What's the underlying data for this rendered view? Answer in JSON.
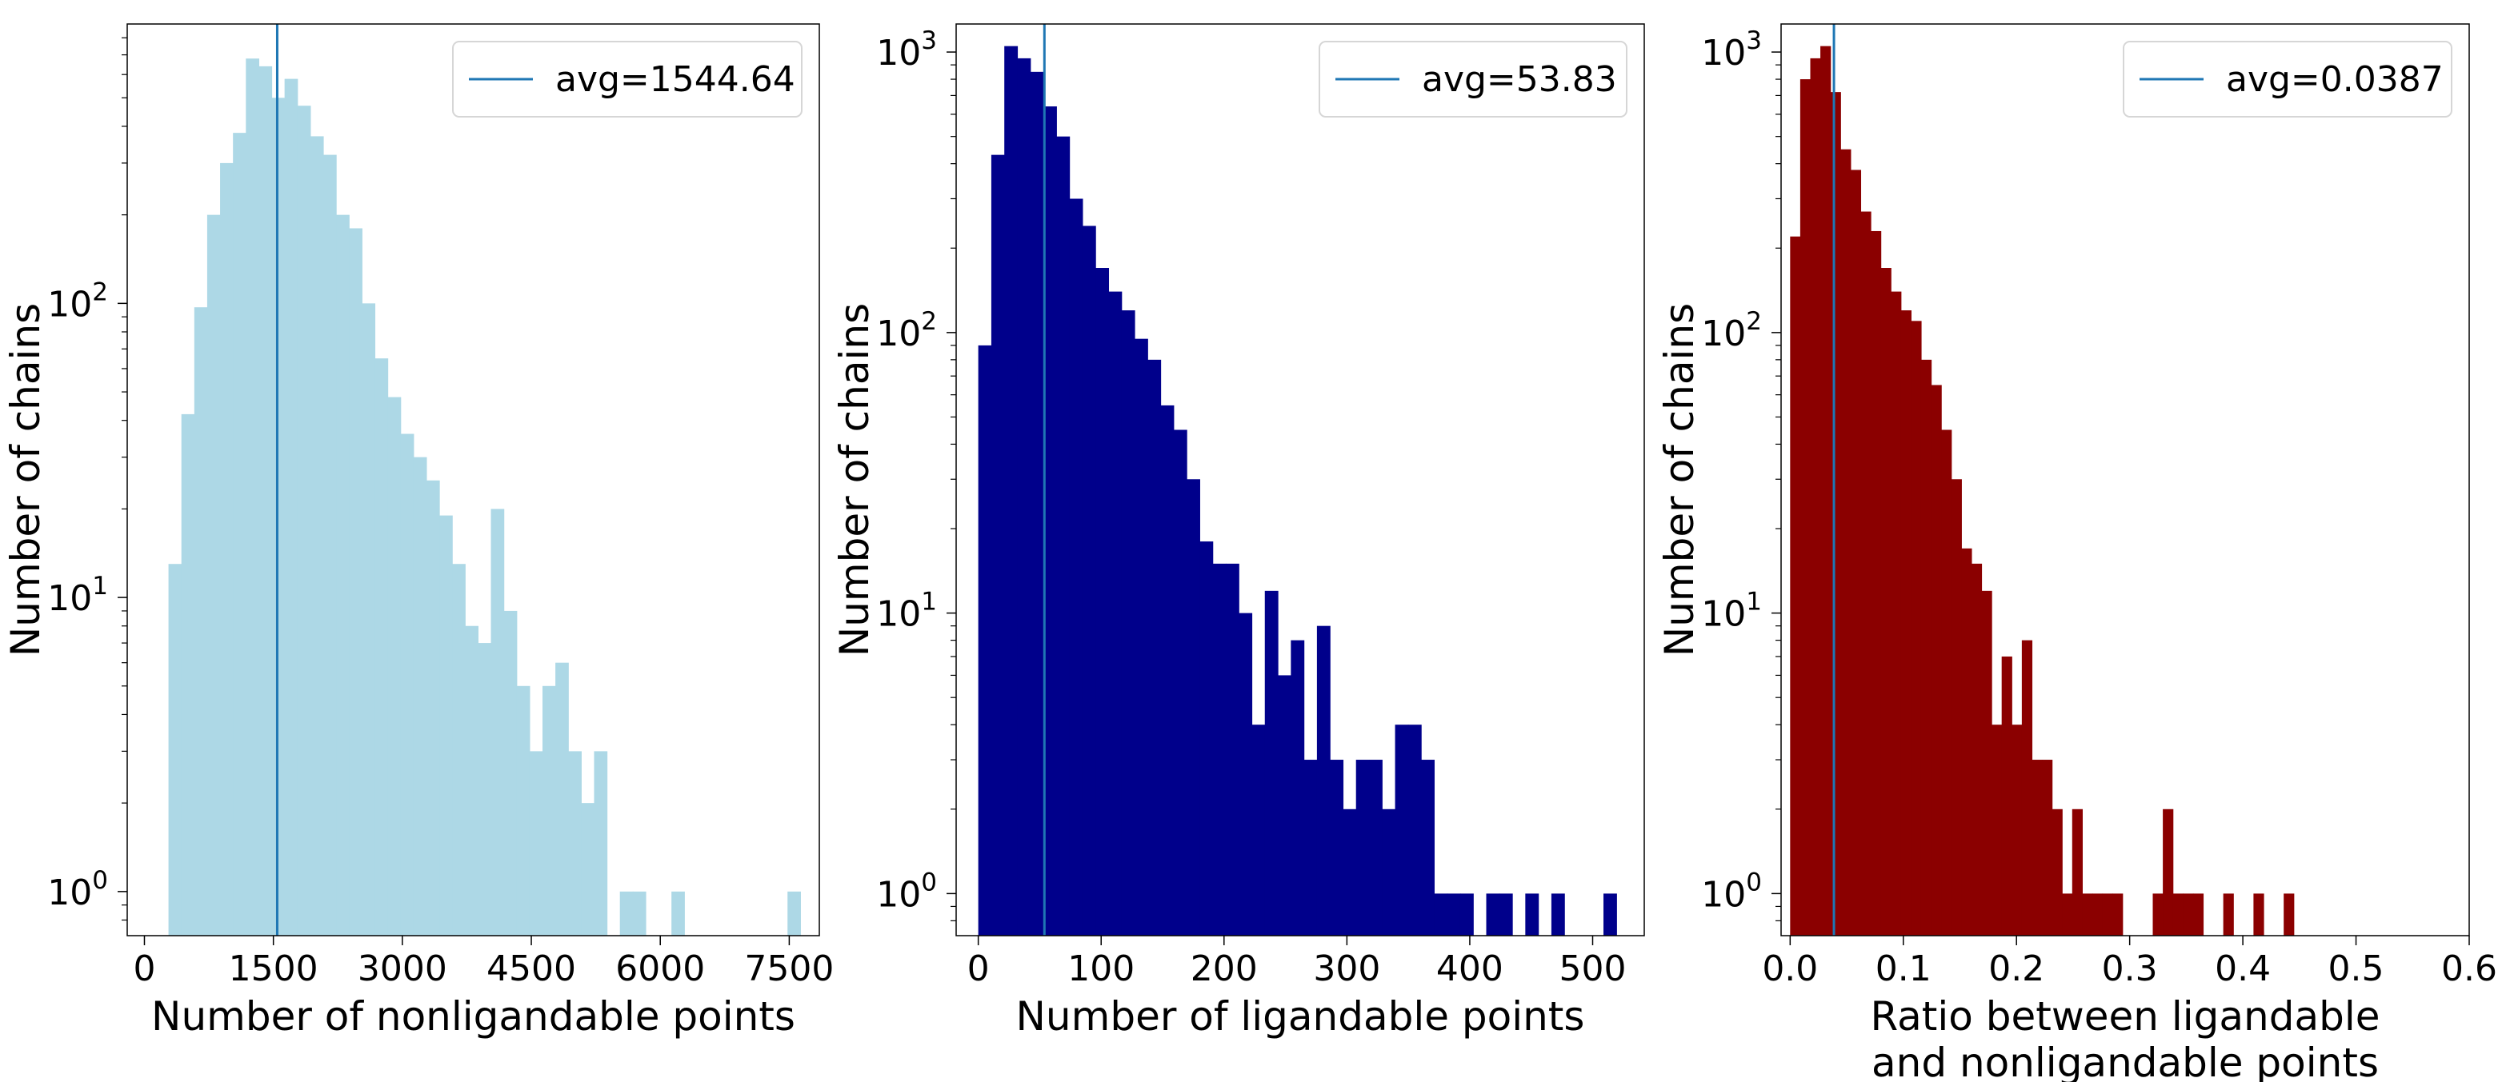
{
  "chart_data": [
    {
      "type": "bar",
      "subtype": "histogram",
      "yscale": "log",
      "bar_color": "#add8e6",
      "xlabel": [
        "Number of nonligandable points"
      ],
      "ylabel": "Number of chains",
      "xlim": [
        -200,
        7850
      ],
      "ylim_log10": [
        -0.15,
        2.95
      ],
      "xticks": [
        0,
        1500,
        3000,
        4500,
        6000,
        7500
      ],
      "xtick_labels": [
        "0",
        "1500",
        "3000",
        "4500",
        "6000",
        "7500"
      ],
      "yticks": [
        1,
        10,
        100
      ],
      "ytick_labels": [
        {
          "base": "10",
          "exp": "0"
        },
        {
          "base": "10",
          "exp": "1"
        },
        {
          "base": "10",
          "exp": "2"
        }
      ],
      "legend": {
        "label": "avg=1544.64",
        "position": "top-right"
      },
      "avg_line": {
        "x": 1544.64,
        "color": "#1f77b4"
      },
      "bin_width": 150,
      "bins": [
        {
          "x0": 280,
          "count": 13
        },
        {
          "x0": 430,
          "count": 42
        },
        {
          "x0": 580,
          "count": 97
        },
        {
          "x0": 730,
          "count": 200
        },
        {
          "x0": 880,
          "count": 300
        },
        {
          "x0": 1030,
          "count": 380
        },
        {
          "x0": 1180,
          "count": 680
        },
        {
          "x0": 1330,
          "count": 640
        },
        {
          "x0": 1480,
          "count": 500
        },
        {
          "x0": 1630,
          "count": 580
        },
        {
          "x0": 1780,
          "count": 470
        },
        {
          "x0": 1930,
          "count": 370
        },
        {
          "x0": 2080,
          "count": 320
        },
        {
          "x0": 2230,
          "count": 200
        },
        {
          "x0": 2380,
          "count": 180
        },
        {
          "x0": 2530,
          "count": 100
        },
        {
          "x0": 2680,
          "count": 65
        },
        {
          "x0": 2830,
          "count": 48
        },
        {
          "x0": 2980,
          "count": 36
        },
        {
          "x0": 3130,
          "count": 30
        },
        {
          "x0": 3280,
          "count": 25
        },
        {
          "x0": 3430,
          "count": 19
        },
        {
          "x0": 3580,
          "count": 13
        },
        {
          "x0": 3730,
          "count": 8
        },
        {
          "x0": 3880,
          "count": 7
        },
        {
          "x0": 4030,
          "count": 20
        },
        {
          "x0": 4180,
          "count": 9
        },
        {
          "x0": 4330,
          "count": 5
        },
        {
          "x0": 4480,
          "count": 3
        },
        {
          "x0": 4630,
          "count": 5
        },
        {
          "x0": 4780,
          "count": 6
        },
        {
          "x0": 4930,
          "count": 3
        },
        {
          "x0": 5080,
          "count": 2
        },
        {
          "x0": 5230,
          "count": 3
        },
        {
          "x0": 5530,
          "count": 1
        },
        {
          "x0": 5680,
          "count": 1
        },
        {
          "x0": 6130,
          "count": 1
        },
        {
          "x0": 7480,
          "count": 1
        }
      ]
    },
    {
      "type": "bar",
      "subtype": "histogram",
      "yscale": "log",
      "bar_color": "#00008b",
      "xlabel": [
        "Number of ligandable points"
      ],
      "ylabel": "Number of chains",
      "xlim": [
        -18,
        542
      ],
      "ylim_log10": [
        -0.15,
        3.1
      ],
      "xticks": [
        0,
        100,
        200,
        300,
        400,
        500
      ],
      "xtick_labels": [
        "0",
        "100",
        "200",
        "300",
        "400",
        "500"
      ],
      "yticks": [
        1,
        10,
        100,
        1000
      ],
      "ytick_labels": [
        {
          "base": "10",
          "exp": "0"
        },
        {
          "base": "10",
          "exp": "1"
        },
        {
          "base": "10",
          "exp": "2"
        },
        {
          "base": "10",
          "exp": "3"
        }
      ],
      "legend": {
        "label": "avg=53.83",
        "position": "top-right"
      },
      "avg_line": {
        "x": 53.83,
        "color": "#1f77b4"
      },
      "bin_width": 10.6,
      "bins": [
        {
          "x0": 0,
          "count": 90
        },
        {
          "x0": 10.6,
          "count": 430
        },
        {
          "x0": 21.2,
          "count": 1050
        },
        {
          "x0": 31.8,
          "count": 950
        },
        {
          "x0": 42.4,
          "count": 850
        },
        {
          "x0": 53.0,
          "count": 640
        },
        {
          "x0": 63.6,
          "count": 500
        },
        {
          "x0": 74.2,
          "count": 300
        },
        {
          "x0": 84.8,
          "count": 240
        },
        {
          "x0": 95.4,
          "count": 170
        },
        {
          "x0": 106,
          "count": 140
        },
        {
          "x0": 116.6,
          "count": 120
        },
        {
          "x0": 127.2,
          "count": 95
        },
        {
          "x0": 137.8,
          "count": 80
        },
        {
          "x0": 148.4,
          "count": 55
        },
        {
          "x0": 159,
          "count": 45
        },
        {
          "x0": 169.6,
          "count": 30
        },
        {
          "x0": 180.2,
          "count": 18
        },
        {
          "x0": 190.8,
          "count": 15
        },
        {
          "x0": 201.4,
          "count": 15
        },
        {
          "x0": 212,
          "count": 10
        },
        {
          "x0": 222.6,
          "count": 4
        },
        {
          "x0": 233.2,
          "count": 12
        },
        {
          "x0": 243.8,
          "count": 6
        },
        {
          "x0": 254.4,
          "count": 8
        },
        {
          "x0": 265,
          "count": 3
        },
        {
          "x0": 275.6,
          "count": 9
        },
        {
          "x0": 286.2,
          "count": 3
        },
        {
          "x0": 296.8,
          "count": 2
        },
        {
          "x0": 307.4,
          "count": 3
        },
        {
          "x0": 318,
          "count": 3
        },
        {
          "x0": 328.6,
          "count": 2
        },
        {
          "x0": 339.2,
          "count": 4
        },
        {
          "x0": 349.8,
          "count": 4
        },
        {
          "x0": 360.4,
          "count": 3
        },
        {
          "x0": 371,
          "count": 1
        },
        {
          "x0": 381.6,
          "count": 1
        },
        {
          "x0": 392.2,
          "count": 1
        },
        {
          "x0": 413.4,
          "count": 1
        },
        {
          "x0": 424,
          "count": 1
        },
        {
          "x0": 445.2,
          "count": 1
        },
        {
          "x0": 466.4,
          "count": 1
        },
        {
          "x0": 508.8,
          "count": 1
        }
      ]
    },
    {
      "type": "bar",
      "subtype": "histogram",
      "yscale": "log",
      "bar_color": "#8b0000",
      "xlabel": [
        "Ratio between ligandable",
        "and nonligandable points"
      ],
      "ylabel": "Number of chains",
      "xlim": [
        -0.008,
        0.6
      ],
      "ylim_log10": [
        -0.15,
        3.1
      ],
      "xticks": [
        0.0,
        0.1,
        0.2,
        0.3,
        0.4,
        0.5,
        0.6
      ],
      "xtick_labels": [
        "0.0",
        "0.1",
        "0.2",
        "0.3",
        "0.4",
        "0.5",
        "0.6"
      ],
      "yticks": [
        1,
        10,
        100,
        1000
      ],
      "ytick_labels": [
        {
          "base": "10",
          "exp": "0"
        },
        {
          "base": "10",
          "exp": "1"
        },
        {
          "base": "10",
          "exp": "2"
        },
        {
          "base": "10",
          "exp": "3"
        }
      ],
      "legend": {
        "label": "avg=0.0387",
        "position": "top-right"
      },
      "avg_line": {
        "x": 0.0387,
        "color": "#1f77b4"
      },
      "bin_width": 0.0089,
      "bins": [
        {
          "x0": 0.0,
          "count": 220
        },
        {
          "x0": 0.0089,
          "count": 800
        },
        {
          "x0": 0.0178,
          "count": 950
        },
        {
          "x0": 0.0267,
          "count": 1050
        },
        {
          "x0": 0.0356,
          "count": 720
        },
        {
          "x0": 0.0445,
          "count": 450
        },
        {
          "x0": 0.0534,
          "count": 380
        },
        {
          "x0": 0.0623,
          "count": 270
        },
        {
          "x0": 0.0712,
          "count": 230
        },
        {
          "x0": 0.0801,
          "count": 170
        },
        {
          "x0": 0.089,
          "count": 140
        },
        {
          "x0": 0.0979,
          "count": 120
        },
        {
          "x0": 0.1068,
          "count": 110
        },
        {
          "x0": 0.1157,
          "count": 80
        },
        {
          "x0": 0.1246,
          "count": 65
        },
        {
          "x0": 0.1335,
          "count": 45
        },
        {
          "x0": 0.1424,
          "count": 30
        },
        {
          "x0": 0.1513,
          "count": 17
        },
        {
          "x0": 0.1602,
          "count": 15
        },
        {
          "x0": 0.1691,
          "count": 12
        },
        {
          "x0": 0.178,
          "count": 4
        },
        {
          "x0": 0.1869,
          "count": 7
        },
        {
          "x0": 0.1958,
          "count": 4
        },
        {
          "x0": 0.2047,
          "count": 8
        },
        {
          "x0": 0.2136,
          "count": 3
        },
        {
          "x0": 0.2225,
          "count": 3
        },
        {
          "x0": 0.2314,
          "count": 2
        },
        {
          "x0": 0.2403,
          "count": 1
        },
        {
          "x0": 0.2492,
          "count": 2
        },
        {
          "x0": 0.2581,
          "count": 1
        },
        {
          "x0": 0.267,
          "count": 1
        },
        {
          "x0": 0.2759,
          "count": 1
        },
        {
          "x0": 0.2848,
          "count": 1
        },
        {
          "x0": 0.3204,
          "count": 1
        },
        {
          "x0": 0.3293,
          "count": 2
        },
        {
          "x0": 0.3382,
          "count": 1
        },
        {
          "x0": 0.3471,
          "count": 1
        },
        {
          "x0": 0.356,
          "count": 1
        },
        {
          "x0": 0.3827,
          "count": 1
        },
        {
          "x0": 0.4094,
          "count": 1
        },
        {
          "x0": 0.4361,
          "count": 1
        }
      ]
    }
  ]
}
